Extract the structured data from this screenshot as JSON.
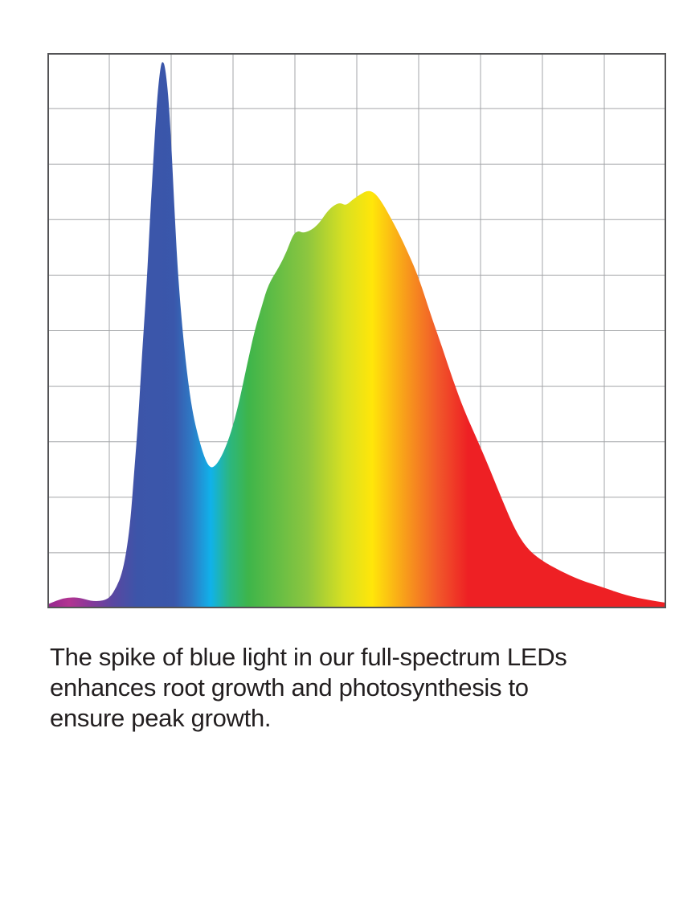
{
  "caption": {
    "text": "The spike of blue light in our full-spectrum LEDs\nenhances root growth and photosynthesis to\nensure peak growth."
  },
  "chart_data": {
    "type": "area",
    "title": "",
    "xlabel": "",
    "ylabel": "",
    "axis_tick_labels_visible": false,
    "legend": "none",
    "grid": {
      "columns": 10,
      "rows": 10,
      "visible": true
    },
    "colors": {
      "background": "#ffffff",
      "grid_line": "#a3a5a8",
      "chart_border": "#545456"
    },
    "x_range_percent": [
      0,
      100
    ],
    "y_range_percent": [
      0,
      100
    ],
    "series": [
      {
        "name": "full-spectrum-led-spectral-output",
        "points_percent_x_intensity": [
          [
            0,
            0.7
          ],
          [
            1.7,
            1.5
          ],
          [
            3.4,
            2
          ],
          [
            5.3,
            1.9
          ],
          [
            7,
            1.3
          ],
          [
            8.8,
            1.3
          ],
          [
            10.1,
            1.9
          ],
          [
            11.2,
            3.9
          ],
          [
            12,
            6.1
          ],
          [
            12.7,
            9.7
          ],
          [
            13.4,
            15.5
          ],
          [
            14,
            24.2
          ],
          [
            14.7,
            34.3
          ],
          [
            15.3,
            45.9
          ],
          [
            16,
            57.5
          ],
          [
            16.6,
            70.5
          ],
          [
            17.3,
            84.2
          ],
          [
            17.8,
            92.9
          ],
          [
            18.3,
            97.7
          ],
          [
            18.6,
            98.6
          ],
          [
            19,
            97.7
          ],
          [
            19.5,
            92.9
          ],
          [
            20,
            84.2
          ],
          [
            20.5,
            72.7
          ],
          [
            21,
            61.8
          ],
          [
            21.7,
            51.7
          ],
          [
            22.5,
            42.7
          ],
          [
            23.5,
            34.9
          ],
          [
            24.7,
            29.5
          ],
          [
            25.6,
            26.5
          ],
          [
            26.4,
            25.2
          ],
          [
            27.3,
            25.8
          ],
          [
            28.4,
            27.9
          ],
          [
            29.7,
            31.7
          ],
          [
            31,
            37.2
          ],
          [
            32.3,
            44.1
          ],
          [
            33.6,
            50.5
          ],
          [
            34.7,
            54.6
          ],
          [
            35.7,
            58.3
          ],
          [
            37.4,
            61.4
          ],
          [
            38.7,
            64.3
          ],
          [
            39.7,
            67.3
          ],
          [
            40.5,
            68
          ],
          [
            41.3,
            67.6
          ],
          [
            42.2,
            67.9
          ],
          [
            43.1,
            68.5
          ],
          [
            44,
            69.5
          ],
          [
            45.2,
            71.4
          ],
          [
            46.2,
            72.5
          ],
          [
            47.3,
            73.1
          ],
          [
            48.2,
            72.5
          ],
          [
            49.2,
            73.5
          ],
          [
            50.5,
            74.5
          ],
          [
            51.8,
            75.3
          ],
          [
            52.9,
            74.8
          ],
          [
            53.9,
            73.4
          ],
          [
            55.1,
            71.1
          ],
          [
            56.6,
            68
          ],
          [
            58.3,
            64
          ],
          [
            60,
            59.6
          ],
          [
            62,
            52.7
          ],
          [
            63.8,
            47
          ],
          [
            65.5,
            41.2
          ],
          [
            67.4,
            35.5
          ],
          [
            69.5,
            30.3
          ],
          [
            71.6,
            24.8
          ],
          [
            73.5,
            19.5
          ],
          [
            75.5,
            14.3
          ],
          [
            77.4,
            10.9
          ],
          [
            79.7,
            8.7
          ],
          [
            82.9,
            6.7
          ],
          [
            86.1,
            5.1
          ],
          [
            89.7,
            3.8
          ],
          [
            93.6,
            2.3
          ],
          [
            97.1,
            1.5
          ],
          [
            100,
            1
          ]
        ]
      }
    ],
    "gradient_stops": [
      {
        "offset": 0,
        "color": "#93278f"
      },
      {
        "offset": 3.5,
        "color": "#b23491"
      },
      {
        "offset": 7,
        "color": "#87399a"
      },
      {
        "offset": 10.5,
        "color": "#5b47a1"
      },
      {
        "offset": 14.5,
        "color": "#3c55a9"
      },
      {
        "offset": 20.5,
        "color": "#3a57ab"
      },
      {
        "offset": 23.3,
        "color": "#2e79c5"
      },
      {
        "offset": 26.4,
        "color": "#10b2ea"
      },
      {
        "offset": 29.5,
        "color": "#2cb67e"
      },
      {
        "offset": 32.5,
        "color": "#3eb54a"
      },
      {
        "offset": 42,
        "color": "#8dc63f"
      },
      {
        "offset": 48,
        "color": "#d9e021"
      },
      {
        "offset": 52.5,
        "color": "#ffe60a"
      },
      {
        "offset": 58.5,
        "color": "#f7941d"
      },
      {
        "offset": 63,
        "color": "#f1592a"
      },
      {
        "offset": 68,
        "color": "#ee2024"
      },
      {
        "offset": 100,
        "color": "#ee2024"
      }
    ]
  }
}
